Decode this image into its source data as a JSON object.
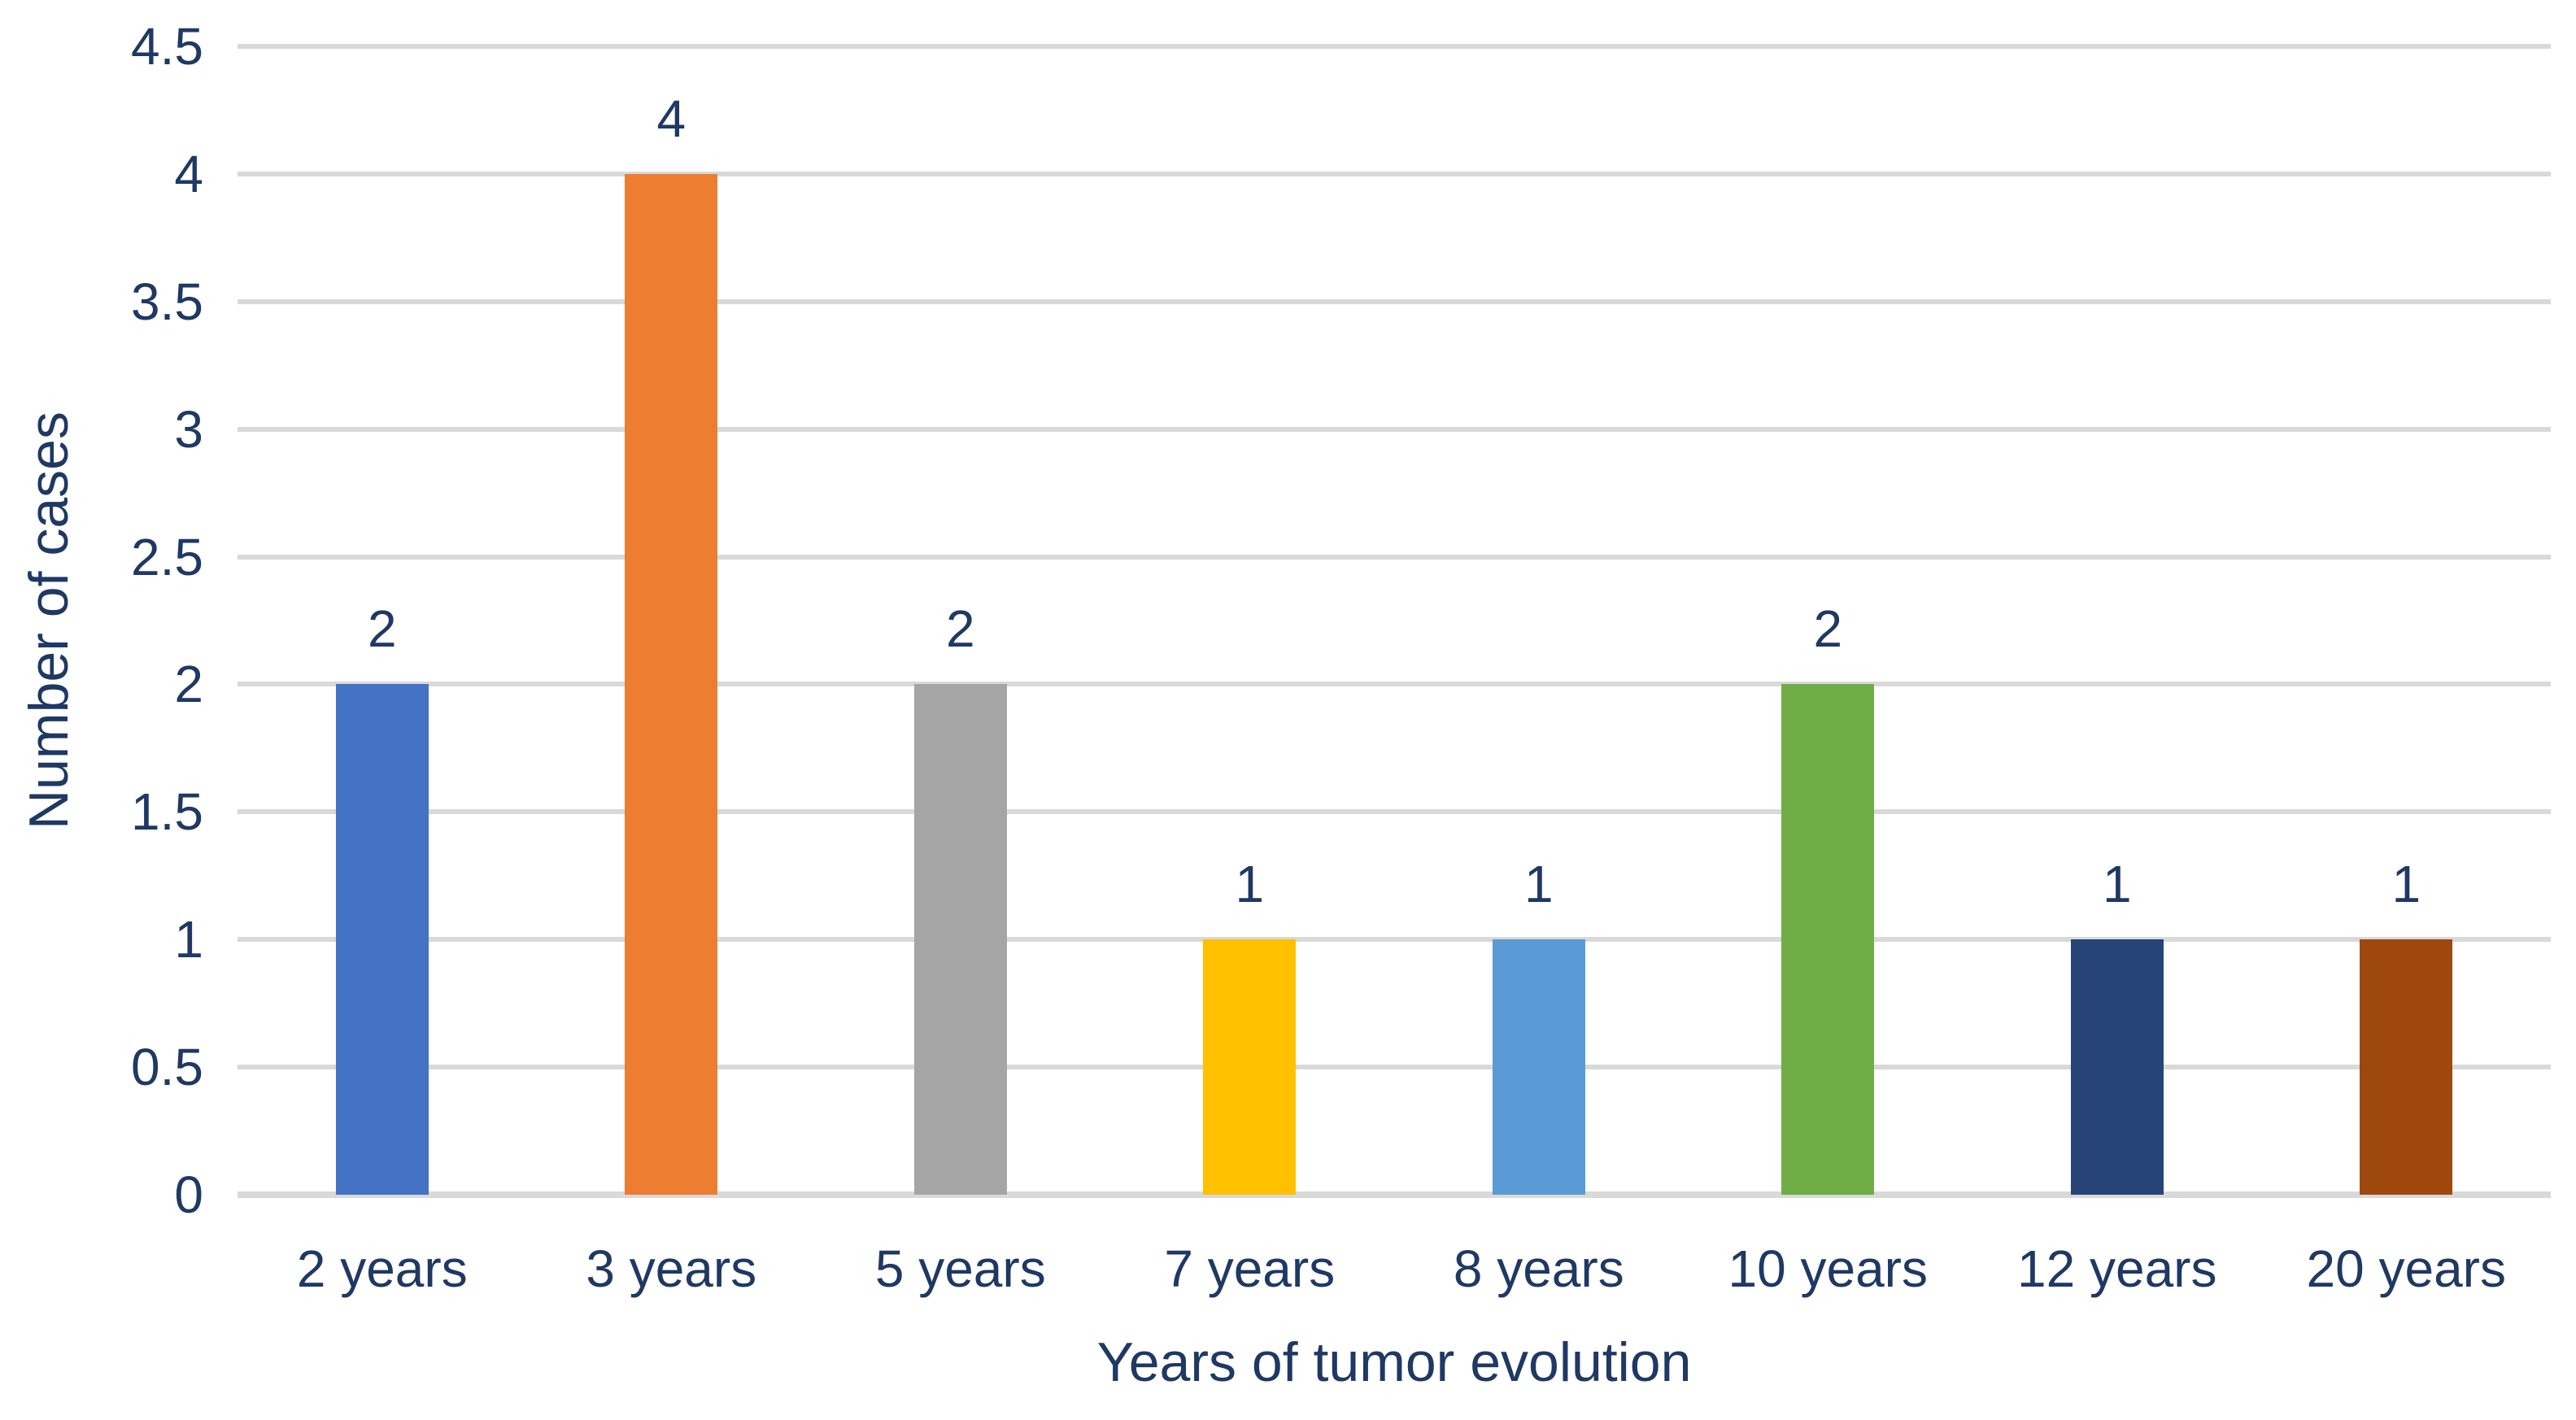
{
  "chart_data": {
    "type": "bar",
    "title": "",
    "xlabel": "Years of tumor evolution",
    "ylabel": "Number of cases",
    "categories": [
      "2 years",
      "3 years",
      "5 years",
      "7 years",
      "8 years",
      "10 years",
      "12 years",
      "20 years"
    ],
    "values": [
      2,
      4,
      2,
      1,
      1,
      2,
      1,
      1
    ],
    "data_labels": [
      "2",
      "4",
      "2",
      "1",
      "1",
      "2",
      "1",
      "1"
    ],
    "bar_colors": [
      "#4472C4",
      "#ED7D31",
      "#A5A5A5",
      "#FFC000",
      "#5B9BD5",
      "#70AD47",
      "#264478",
      "#9E480E"
    ],
    "ylim": [
      0,
      4.5
    ],
    "ytick_step": 0.5,
    "yticks": [
      "0",
      "0.5",
      "1",
      "1.5",
      "2",
      "2.5",
      "3",
      "3.5",
      "4",
      "4.5"
    ],
    "grid": true,
    "legend": "none",
    "colors": {
      "text": "#1F3864",
      "gridline": "#D9D9D9",
      "axis_line": "#D9D9D9",
      "background": "#FFFFFF"
    }
  }
}
